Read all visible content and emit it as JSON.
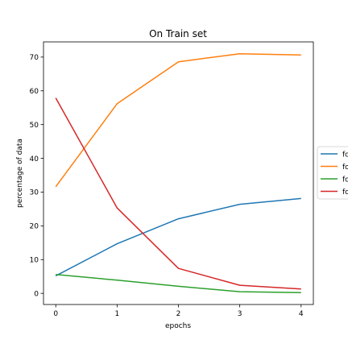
{
  "chart_data": {
    "type": "line",
    "title": "On Train set",
    "xlabel": "epochs",
    "ylabel": "percentage of data",
    "x": [
      0,
      1,
      2,
      3,
      4
    ],
    "xticks": [
      "0",
      "1",
      "2",
      "3",
      "4"
    ],
    "yticks": [
      "0",
      "10",
      "20",
      "30",
      "40",
      "50",
      "60",
      "70"
    ],
    "xlim": [
      -0.2,
      4.2
    ],
    "ylim": [
      -3.3,
      74.5
    ],
    "grid": false,
    "legend_placement": "right, outside, vertically centered (cropped)",
    "series": [
      {
        "name": "fo",
        "color": "#1f77b4",
        "values": [
          5.2,
          14.7,
          22.1,
          26.4,
          28.1
        ]
      },
      {
        "name": "fo",
        "color": "#ff7f0e",
        "values": [
          31.6,
          56.2,
          68.6,
          71.0,
          70.6
        ]
      },
      {
        "name": "fo",
        "color": "#2ca02c",
        "values": [
          5.6,
          3.9,
          2.1,
          0.5,
          0.2
        ]
      },
      {
        "name": "fo",
        "color": "#d62728",
        "values": [
          57.9,
          25.3,
          7.4,
          2.4,
          1.3
        ]
      }
    ]
  }
}
